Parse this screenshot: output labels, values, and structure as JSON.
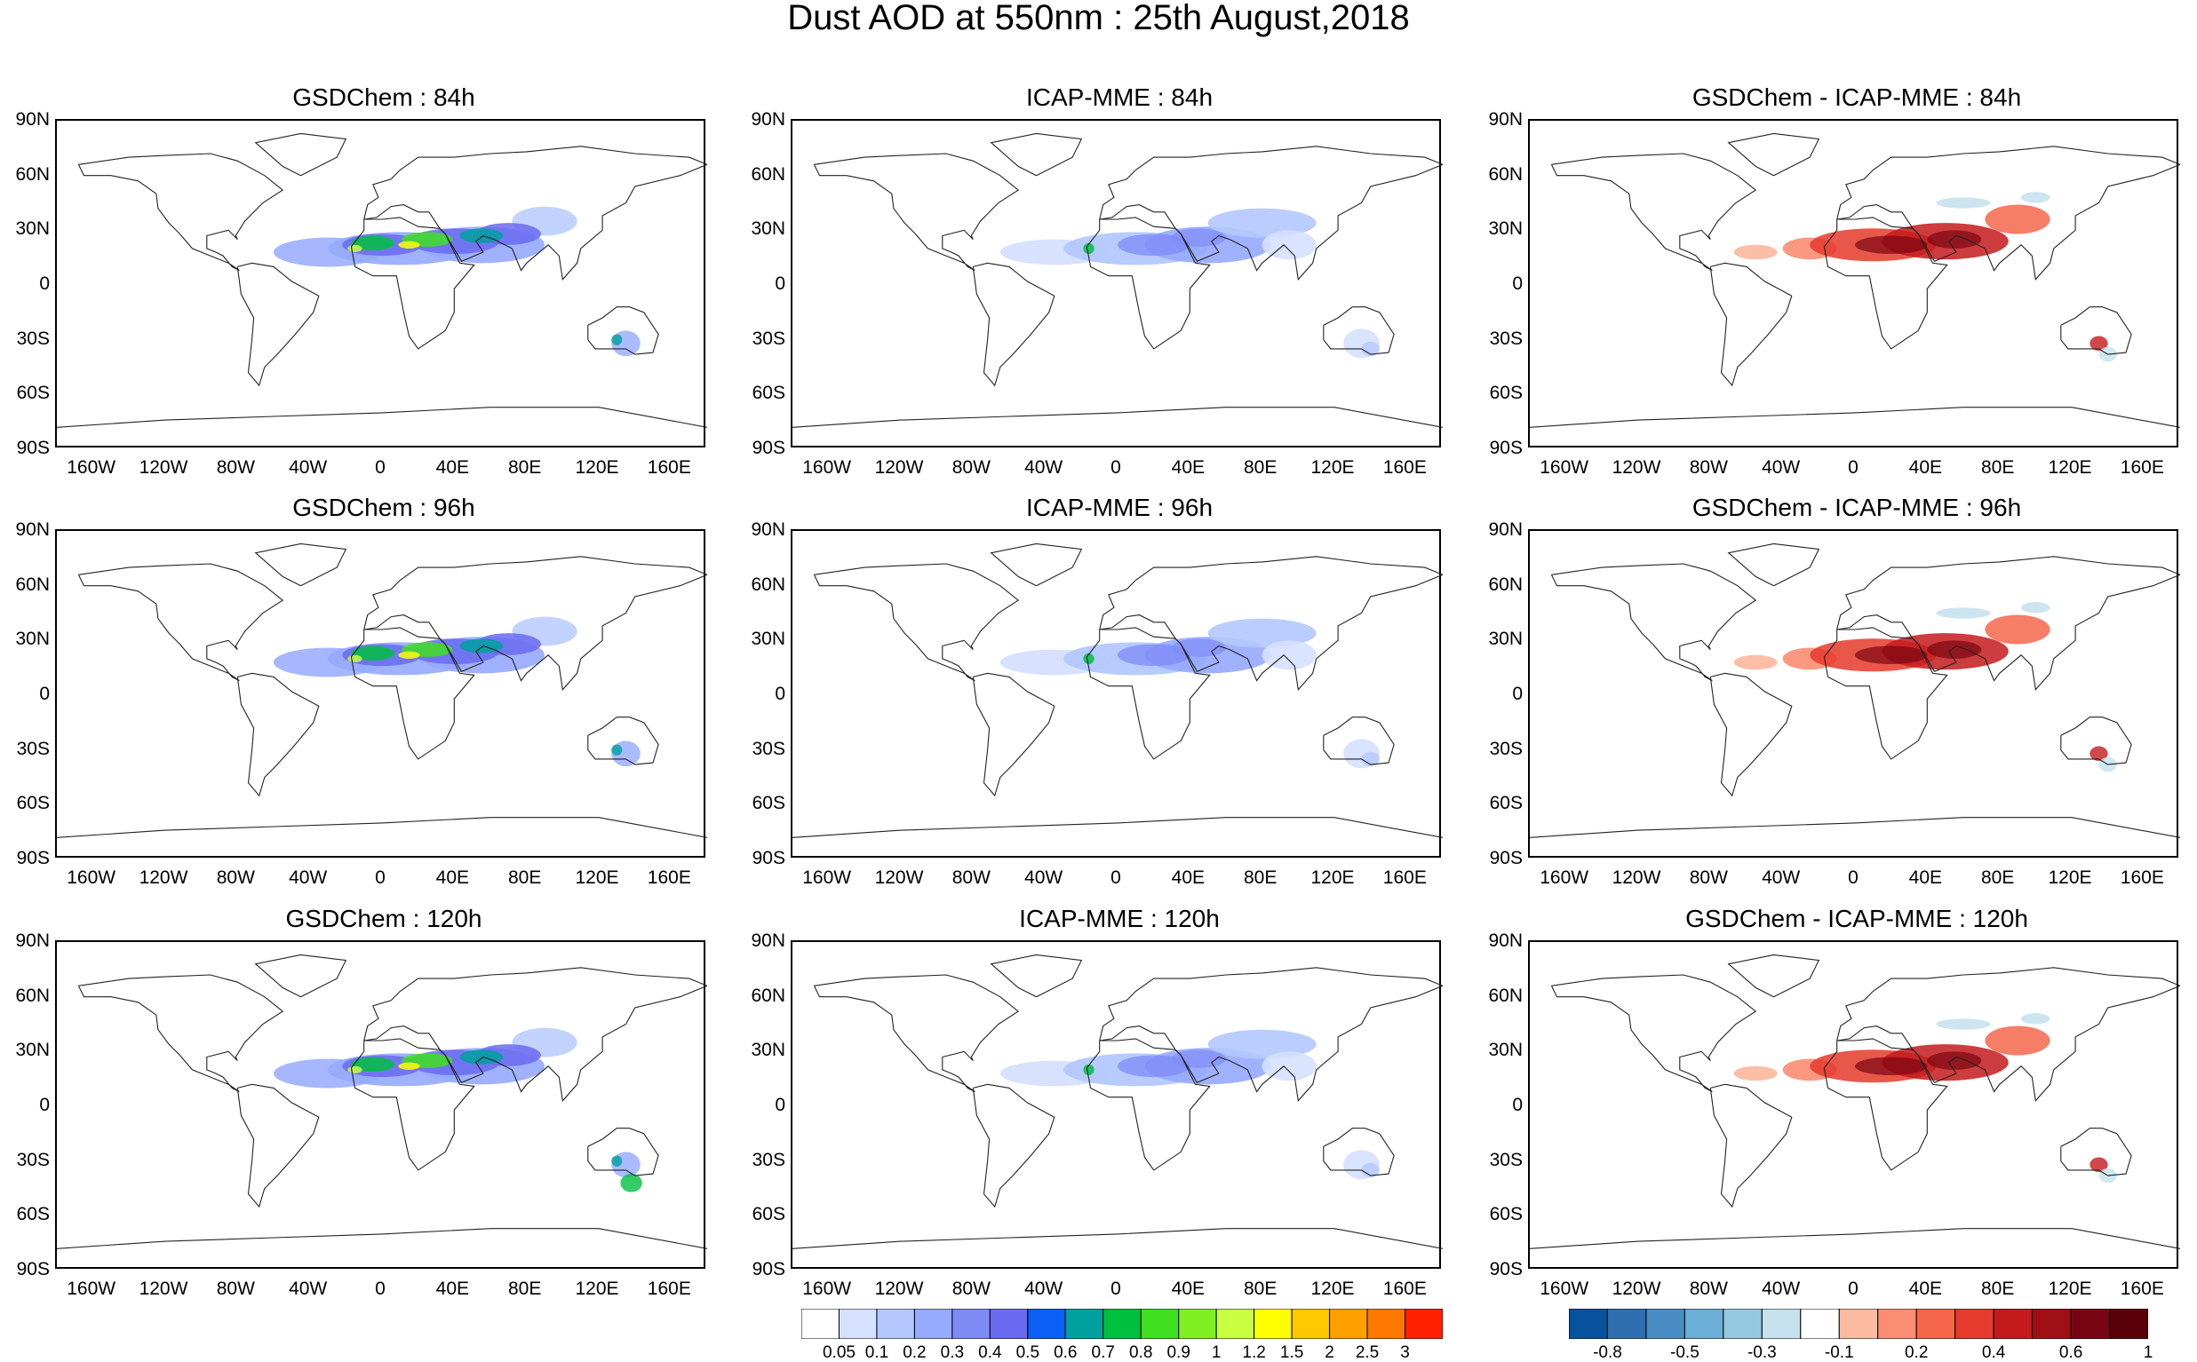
{
  "main_title": "Dust AOD at 550nm : 25th August,2018",
  "panels": [
    {
      "title": "GSDChem : 84h",
      "kind": "model"
    },
    {
      "title": "ICAP-MME : 84h",
      "kind": "icap"
    },
    {
      "title": "GSDChem - ICAP-MME : 84h",
      "kind": "diff"
    },
    {
      "title": "GSDChem : 96h",
      "kind": "model"
    },
    {
      "title": "ICAP-MME : 96h",
      "kind": "icap"
    },
    {
      "title": "GSDChem - ICAP-MME : 96h",
      "kind": "diff"
    },
    {
      "title": "GSDChem : 120h",
      "kind": "model"
    },
    {
      "title": "ICAP-MME : 120h",
      "kind": "icap"
    },
    {
      "title": "GSDChem - ICAP-MME : 120h",
      "kind": "diff"
    }
  ],
  "lat_labels": [
    "90N",
    "60N",
    "30N",
    "0",
    "30S",
    "60S",
    "90S"
  ],
  "lon_labels": [
    "160W",
    "120W",
    "80W",
    "40W",
    "0",
    "40E",
    "80E",
    "120E",
    "160E"
  ],
  "aod_colorbar": {
    "colors": [
      "#ffffff",
      "#d6e0ff",
      "#b4c8ff",
      "#96aaff",
      "#7f8bf5",
      "#6a6af0",
      "#0a5ff5",
      "#00a0a0",
      "#00c040",
      "#40e020",
      "#80f020",
      "#c8ff40",
      "#ffff00",
      "#ffc800",
      "#ffa000",
      "#ff7800",
      "#ff2000"
    ],
    "labels": [
      "0.05",
      "0.1",
      "0.2",
      "0.3",
      "0.4",
      "0.5",
      "0.6",
      "0.7",
      "0.8",
      "0.9",
      "1",
      "1.2",
      "1.5",
      "2",
      "2.5",
      "3"
    ]
  },
  "diff_colorbar": {
    "colors": [
      "#08519c",
      "#2f6fb0",
      "#4a8cc4",
      "#6baed6",
      "#93c8e0",
      "#c6e2ee",
      "#ffffff",
      "#fcbba1",
      "#fb8e72",
      "#f5664b",
      "#e53a2c",
      "#c41a1c",
      "#a00e16",
      "#7a0512",
      "#5a0008"
    ],
    "labels": [
      "-0.8",
      "-0.5",
      "-0.3",
      "-0.1",
      "0.2",
      "0.4",
      "0.6",
      "1"
    ]
  }
}
